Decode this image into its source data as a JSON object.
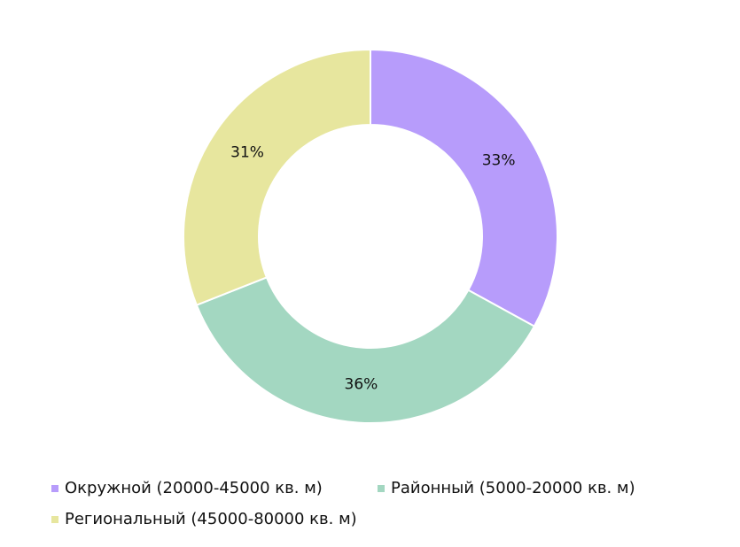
{
  "chart_data": {
    "type": "donut",
    "categories": [
      "Окружной (20000-45000 кв. м)",
      "Районный (5000-20000 кв. м)",
      "Региональный (45000-80000 кв. м)"
    ],
    "values": [
      33,
      36,
      31
    ],
    "value_labels": [
      "33%",
      "36%",
      "31%"
    ],
    "colors": [
      "#b79cfb",
      "#a3d7c1",
      "#e7e69e"
    ],
    "legend": "bottom"
  }
}
